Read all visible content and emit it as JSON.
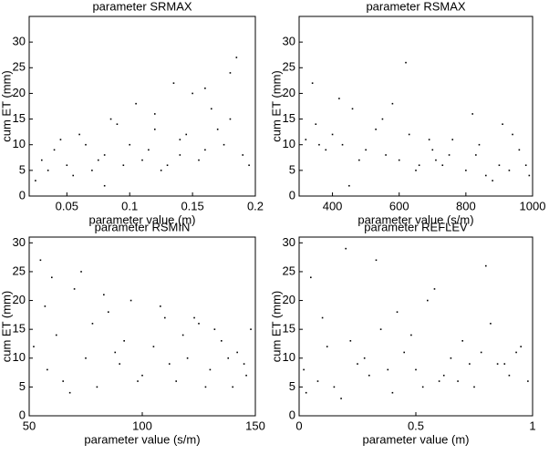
{
  "chart_data": [
    {
      "type": "scatter",
      "title": "parameter SRMAX",
      "x_label": "parameter value (m)",
      "y_label": "cum ET (mm)",
      "color": "#000000",
      "xlim": [
        0.02,
        0.2
      ],
      "xticks": [
        0.05,
        0.1,
        0.15,
        0.2
      ],
      "ylim": [
        0,
        35
      ],
      "yticks": [
        0,
        5,
        10,
        15,
        20,
        25,
        30
      ],
      "x": [
        0.03,
        0.04,
        0.05,
        0.06,
        0.07,
        0.08,
        0.09,
        0.1,
        0.11,
        0.12,
        0.13,
        0.14,
        0.15,
        0.16,
        0.17,
        0.18,
        0.19,
        0.035,
        0.045,
        0.055,
        0.065,
        0.075,
        0.085,
        0.095,
        0.105,
        0.115,
        0.125,
        0.135,
        0.145,
        0.155,
        0.165,
        0.175,
        0.185,
        0.195,
        0.025,
        0.12,
        0.16,
        0.18,
        0.08,
        0.14
      ],
      "values": [
        7,
        9,
        6,
        12,
        5,
        8,
        14,
        10,
        7,
        16,
        6,
        11,
        20,
        9,
        13,
        24,
        8,
        5,
        11,
        4,
        10,
        7,
        15,
        6,
        18,
        9,
        5,
        22,
        12,
        7,
        17,
        10,
        27,
        6,
        3,
        13,
        21,
        15,
        2,
        8
      ]
    },
    {
      "type": "scatter",
      "title": "parameter RSMAX",
      "x_label": "parameter value (s/m)",
      "y_label": "cum ET (mm)",
      "color": "#000000",
      "xlim": [
        300,
        1000
      ],
      "xticks": [
        400,
        600,
        800,
        1000
      ],
      "ylim": [
        0,
        35
      ],
      "yticks": [
        0,
        5,
        10,
        15,
        20,
        25,
        30
      ],
      "x": [
        320,
        350,
        380,
        400,
        430,
        460,
        500,
        530,
        560,
        600,
        630,
        660,
        700,
        730,
        760,
        800,
        830,
        860,
        900,
        930,
        960,
        990,
        340,
        420,
        480,
        550,
        620,
        690,
        750,
        820,
        880,
        940,
        980,
        360,
        450,
        580,
        710,
        840,
        910,
        650
      ],
      "values": [
        11,
        14,
        9,
        12,
        10,
        17,
        9,
        13,
        8,
        7,
        12,
        6,
        9,
        6,
        11,
        5,
        8,
        4,
        6,
        5,
        9,
        4,
        22,
        19,
        7,
        15,
        26,
        11,
        8,
        16,
        3,
        12,
        6,
        10,
        2,
        18,
        7,
        10,
        14,
        5
      ]
    },
    {
      "type": "scatter",
      "title": "parameter RSMIN",
      "x_label": "parameter value (s/m)",
      "y_label": "cum ET (mm)",
      "color": "#000000",
      "xlim": [
        50,
        150
      ],
      "xticks": [
        50,
        100,
        150
      ],
      "ylim": [
        0,
        31
      ],
      "yticks": [
        0,
        5,
        10,
        15,
        20,
        25,
        30
      ],
      "x": [
        55,
        58,
        62,
        65,
        70,
        75,
        80,
        85,
        90,
        95,
        100,
        105,
        110,
        115,
        120,
        125,
        130,
        135,
        140,
        145,
        148,
        52,
        60,
        68,
        78,
        88,
        98,
        108,
        118,
        128,
        138,
        146,
        57,
        73,
        92,
        112,
        132,
        142,
        83,
        123
      ],
      "values": [
        27,
        8,
        14,
        6,
        22,
        10,
        5,
        18,
        9,
        20,
        7,
        12,
        17,
        6,
        10,
        16,
        8,
        13,
        5,
        9,
        15,
        12,
        24,
        4,
        16,
        11,
        6,
        19,
        14,
        5,
        10,
        7,
        19,
        25,
        13,
        9,
        15,
        11,
        21,
        17
      ]
    },
    {
      "type": "scatter",
      "title": "parameter REFLEV",
      "x_label": "parameter value (m)",
      "y_label": "cum ET (mm)",
      "color": "#000000",
      "xlim": [
        0,
        1
      ],
      "xticks": [
        0,
        0.5,
        1
      ],
      "ylim": [
        0,
        31
      ],
      "yticks": [
        0,
        5,
        10,
        15,
        20,
        25,
        30
      ],
      "x": [
        0.02,
        0.05,
        0.08,
        0.12,
        0.15,
        0.2,
        0.25,
        0.3,
        0.35,
        0.4,
        0.45,
        0.5,
        0.55,
        0.6,
        0.65,
        0.7,
        0.75,
        0.8,
        0.85,
        0.9,
        0.95,
        0.98,
        0.1,
        0.18,
        0.28,
        0.38,
        0.48,
        0.58,
        0.68,
        0.78,
        0.88,
        0.03,
        0.22,
        0.42,
        0.62,
        0.82,
        0.33,
        0.53,
        0.73,
        0.93
      ],
      "values": [
        8,
        24,
        6,
        12,
        5,
        29,
        9,
        7,
        15,
        4,
        11,
        8,
        20,
        6,
        10,
        13,
        5,
        26,
        9,
        7,
        12,
        6,
        17,
        3,
        10,
        8,
        14,
        22,
        6,
        11,
        9,
        4,
        13,
        18,
        7,
        16,
        27,
        5,
        9,
        11
      ]
    }
  ]
}
